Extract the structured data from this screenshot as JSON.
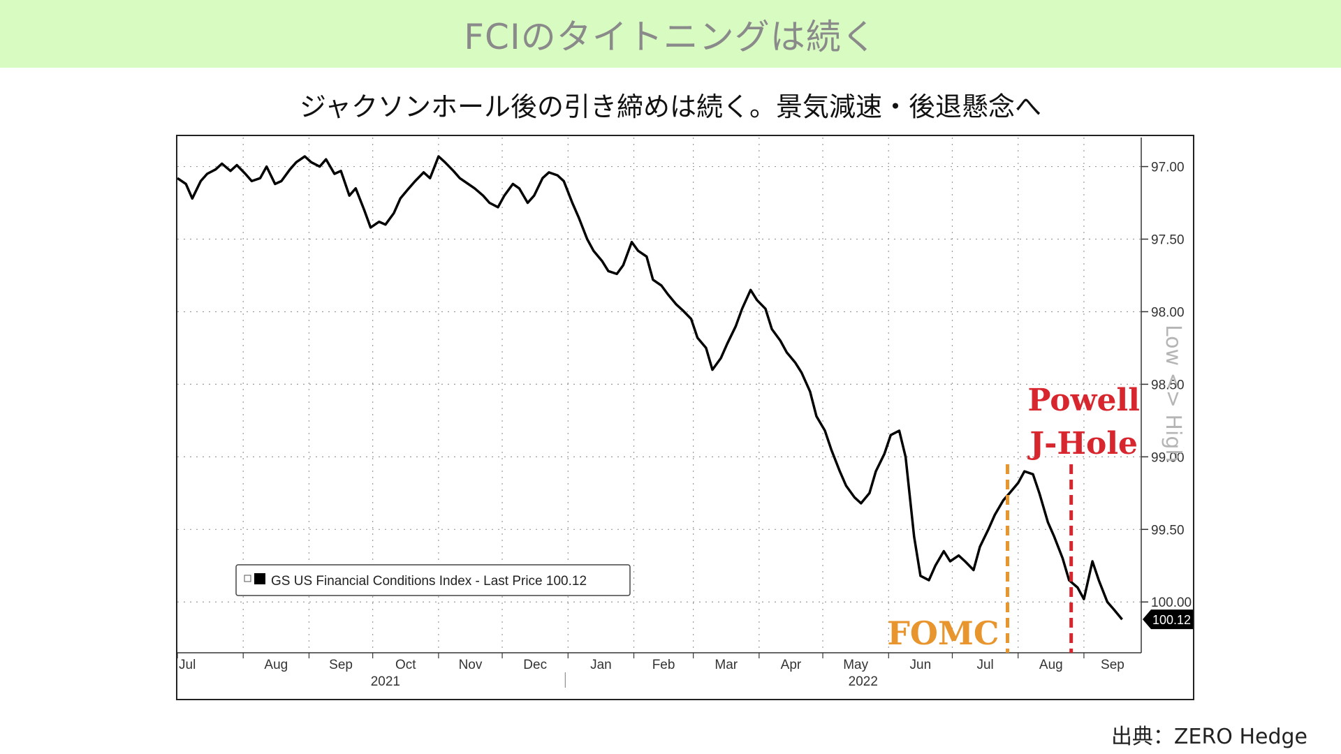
{
  "banner": {
    "title": "FCIのタイトニングは続く"
  },
  "subtitle": "ジャクソンホール後の引き締めは続く。景気減速・後退懸念へ",
  "source": "出典：ZERO Hedge",
  "chart_data": {
    "type": "line",
    "y_inverted": true,
    "ylim": [
      96.8,
      100.35
    ],
    "y_ticks": [
      "97.00",
      "97.50",
      "98.00",
      "98.50",
      "99.00",
      "99.50",
      "100.00"
    ],
    "y_tick_values": [
      97.0,
      97.5,
      98.0,
      98.5,
      99.0,
      99.5,
      100.0
    ],
    "x_ticks": [
      "Jul",
      "Aug",
      "Sep",
      "Oct",
      "Nov",
      "Dec",
      "Jan",
      "Feb",
      "Mar",
      "Apr",
      "May",
      "Jun",
      "Jul",
      "Aug",
      "Sep"
    ],
    "x_tick_dates": [
      "2021-07-01",
      "2021-08-01",
      "2021-09-01",
      "2021-10-01",
      "2021-11-01",
      "2021-12-01",
      "2022-01-01",
      "2022-02-01",
      "2022-03-01",
      "2022-04-01",
      "2022-05-01",
      "2022-06-01",
      "2022-07-01",
      "2022-08-01",
      "2022-09-01"
    ],
    "year_labels": [
      "2021",
      "2022"
    ],
    "side_label": "Low <> High",
    "legend": {
      "text": "GS US Financial Conditions Index - Last Price 100.12"
    },
    "last_value_label": "100.12",
    "grid": true,
    "series": [
      {
        "name": "GS US Financial Conditions Index",
        "color": "#000000",
        "points": [
          [
            "2021-07-01",
            97.08
          ],
          [
            "2021-07-05",
            97.12
          ],
          [
            "2021-07-08",
            97.22
          ],
          [
            "2021-07-12",
            97.1
          ],
          [
            "2021-07-15",
            97.05
          ],
          [
            "2021-07-19",
            97.02
          ],
          [
            "2021-07-22",
            96.98
          ],
          [
            "2021-07-26",
            97.03
          ],
          [
            "2021-07-29",
            96.99
          ],
          [
            "2021-08-02",
            97.05
          ],
          [
            "2021-08-05",
            97.1
          ],
          [
            "2021-08-09",
            97.08
          ],
          [
            "2021-08-12",
            97.0
          ],
          [
            "2021-08-16",
            97.12
          ],
          [
            "2021-08-19",
            97.1
          ],
          [
            "2021-08-23",
            97.02
          ],
          [
            "2021-08-26",
            96.97
          ],
          [
            "2021-08-30",
            96.93
          ],
          [
            "2021-09-02",
            96.97
          ],
          [
            "2021-09-06",
            97.0
          ],
          [
            "2021-09-09",
            96.95
          ],
          [
            "2021-09-13",
            97.05
          ],
          [
            "2021-09-16",
            97.03
          ],
          [
            "2021-09-20",
            97.2
          ],
          [
            "2021-09-23",
            97.15
          ],
          [
            "2021-09-27",
            97.3
          ],
          [
            "2021-09-30",
            97.42
          ],
          [
            "2021-10-04",
            97.38
          ],
          [
            "2021-10-07",
            97.4
          ],
          [
            "2021-10-11",
            97.32
          ],
          [
            "2021-10-14",
            97.22
          ],
          [
            "2021-10-18",
            97.15
          ],
          [
            "2021-10-21",
            97.1
          ],
          [
            "2021-10-25",
            97.04
          ],
          [
            "2021-10-28",
            97.08
          ],
          [
            "2021-11-01",
            96.93
          ],
          [
            "2021-11-04",
            96.97
          ],
          [
            "2021-11-08",
            97.03
          ],
          [
            "2021-11-11",
            97.08
          ],
          [
            "2021-11-15",
            97.12
          ],
          [
            "2021-11-18",
            97.15
          ],
          [
            "2021-11-22",
            97.2
          ],
          [
            "2021-11-25",
            97.25
          ],
          [
            "2021-11-29",
            97.28
          ],
          [
            "2021-12-02",
            97.2
          ],
          [
            "2021-12-06",
            97.12
          ],
          [
            "2021-12-09",
            97.15
          ],
          [
            "2021-12-13",
            97.25
          ],
          [
            "2021-12-16",
            97.2
          ],
          [
            "2021-12-20",
            97.08
          ],
          [
            "2021-12-23",
            97.04
          ],
          [
            "2021-12-27",
            97.06
          ],
          [
            "2021-12-30",
            97.1
          ],
          [
            "2022-01-03",
            97.25
          ],
          [
            "2022-01-06",
            97.35
          ],
          [
            "2022-01-10",
            97.5
          ],
          [
            "2022-01-13",
            97.58
          ],
          [
            "2022-01-17",
            97.65
          ],
          [
            "2022-01-20",
            97.72
          ],
          [
            "2022-01-24",
            97.74
          ],
          [
            "2022-01-27",
            97.68
          ],
          [
            "2022-01-31",
            97.52
          ],
          [
            "2022-02-03",
            97.58
          ],
          [
            "2022-02-07",
            97.62
          ],
          [
            "2022-02-10",
            97.78
          ],
          [
            "2022-02-14",
            97.82
          ],
          [
            "2022-02-17",
            97.88
          ],
          [
            "2022-02-21",
            97.95
          ],
          [
            "2022-02-24",
            97.99
          ],
          [
            "2022-02-28",
            98.05
          ],
          [
            "2022-03-03",
            98.18
          ],
          [
            "2022-03-07",
            98.25
          ],
          [
            "2022-03-10",
            98.4
          ],
          [
            "2022-03-14",
            98.32
          ],
          [
            "2022-03-17",
            98.22
          ],
          [
            "2022-03-21",
            98.1
          ],
          [
            "2022-03-24",
            97.98
          ],
          [
            "2022-03-28",
            97.85
          ],
          [
            "2022-03-31",
            97.92
          ],
          [
            "2022-04-04",
            97.98
          ],
          [
            "2022-04-07",
            98.12
          ],
          [
            "2022-04-11",
            98.2
          ],
          [
            "2022-04-14",
            98.28
          ],
          [
            "2022-04-18",
            98.35
          ],
          [
            "2022-04-21",
            98.42
          ],
          [
            "2022-04-25",
            98.55
          ],
          [
            "2022-04-28",
            98.72
          ],
          [
            "2022-05-02",
            98.82
          ],
          [
            "2022-05-05",
            98.95
          ],
          [
            "2022-05-09",
            99.1
          ],
          [
            "2022-05-12",
            99.2
          ],
          [
            "2022-05-16",
            99.28
          ],
          [
            "2022-05-19",
            99.32
          ],
          [
            "2022-05-23",
            99.25
          ],
          [
            "2022-05-26",
            99.1
          ],
          [
            "2022-05-30",
            98.98
          ],
          [
            "2022-06-02",
            98.85
          ],
          [
            "2022-06-06",
            98.82
          ],
          [
            "2022-06-09",
            99.0
          ],
          [
            "2022-06-13",
            99.55
          ],
          [
            "2022-06-16",
            99.82
          ],
          [
            "2022-06-20",
            99.85
          ],
          [
            "2022-06-23",
            99.75
          ],
          [
            "2022-06-27",
            99.65
          ],
          [
            "2022-06-30",
            99.72
          ],
          [
            "2022-07-04",
            99.68
          ],
          [
            "2022-07-07",
            99.72
          ],
          [
            "2022-07-11",
            99.78
          ],
          [
            "2022-07-14",
            99.62
          ],
          [
            "2022-07-18",
            99.5
          ],
          [
            "2022-07-21",
            99.4
          ],
          [
            "2022-07-25",
            99.3
          ],
          [
            "2022-07-28",
            99.25
          ],
          [
            "2022-08-01",
            99.18
          ],
          [
            "2022-08-04",
            99.1
          ],
          [
            "2022-08-08",
            99.12
          ],
          [
            "2022-08-11",
            99.25
          ],
          [
            "2022-08-15",
            99.45
          ],
          [
            "2022-08-18",
            99.55
          ],
          [
            "2022-08-22",
            99.7
          ],
          [
            "2022-08-25",
            99.85
          ],
          [
            "2022-08-29",
            99.9
          ],
          [
            "2022-09-01",
            99.98
          ],
          [
            "2022-09-05",
            99.72
          ],
          [
            "2022-09-08",
            99.85
          ],
          [
            "2022-09-12",
            100.0
          ],
          [
            "2022-09-15",
            100.05
          ],
          [
            "2022-09-19",
            100.12
          ]
        ]
      }
    ],
    "annotations": [
      {
        "label": "FOMC",
        "date": "2022-07-27",
        "color": "#e8952e"
      },
      {
        "label": "Powell\nJ-Hole",
        "date": "2022-08-26",
        "color": "#d7262e"
      }
    ]
  }
}
